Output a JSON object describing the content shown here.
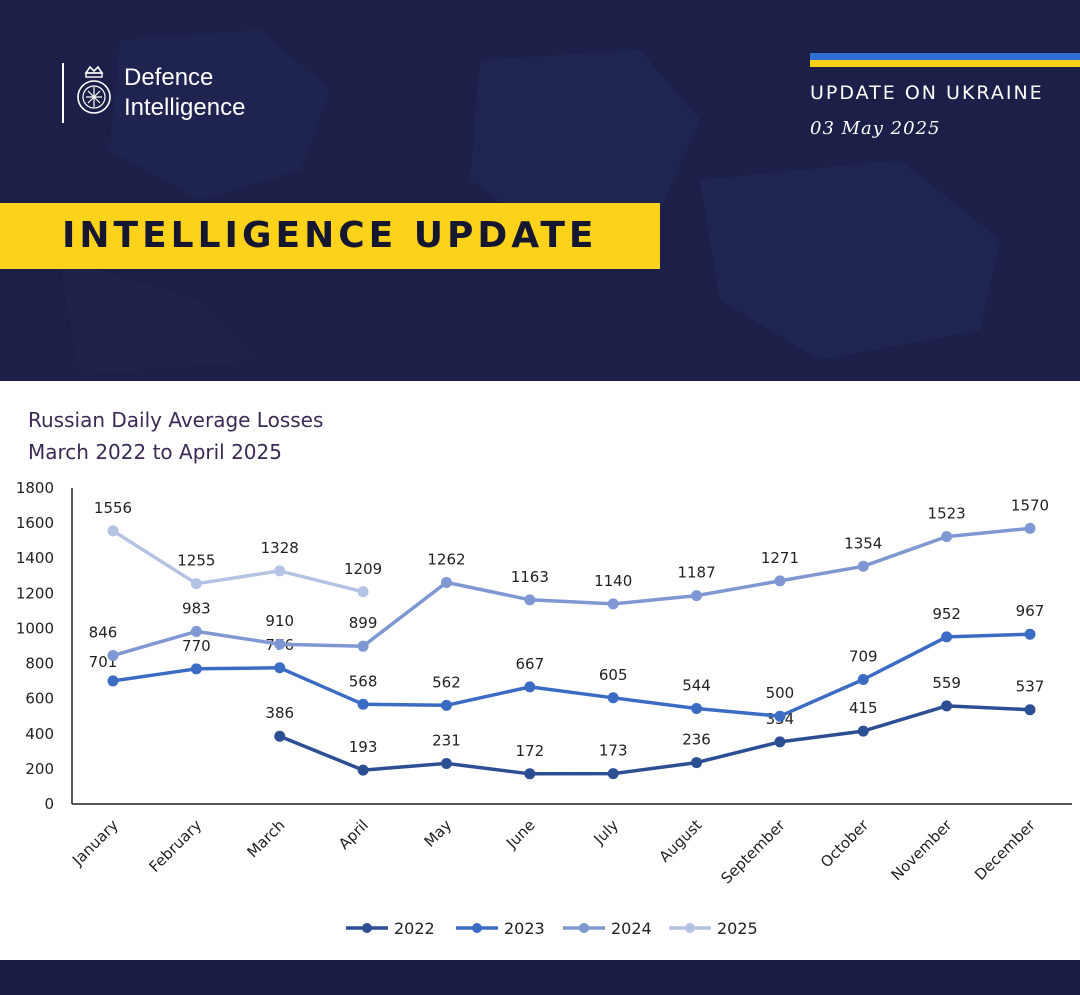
{
  "header": {
    "logo_line1": "Defence",
    "logo_line2": "Intelligence",
    "update_title": "UPDATE ON UKRAINE",
    "update_date": "03 May 2025",
    "banner": "INTELLIGENCE UPDATE"
  },
  "colors": {
    "navy_background": "#1b1f45",
    "banner_yellow": "#fcd21b",
    "flag_blue": "#2f6fd6",
    "flag_yellow": "#f7d117"
  },
  "chart_data": {
    "type": "line",
    "title_line1": "Russian Daily Average Losses",
    "title_line2": "March 2022 to April 2025",
    "xlabel": "",
    "ylabel": "",
    "categories": [
      "January",
      "February",
      "March",
      "April",
      "May",
      "June",
      "July",
      "August",
      "September",
      "October",
      "November",
      "December"
    ],
    "yticks": [
      "0",
      "200",
      "400",
      "600",
      "800",
      "1000",
      "1200",
      "1400",
      "1600",
      "1800"
    ],
    "ylim": [
      0,
      1800
    ],
    "grid": false,
    "legend_position": "bottom",
    "series": [
      {
        "name": "2022",
        "color": "#2c4f93",
        "values": [
          null,
          null,
          386,
          193,
          231,
          172,
          173,
          236,
          354,
          415,
          559,
          537
        ]
      },
      {
        "name": "2023",
        "color": "#3b6cc4",
        "values": [
          701,
          770,
          776,
          568,
          562,
          667,
          605,
          544,
          500,
          709,
          952,
          967
        ]
      },
      {
        "name": "2024",
        "color": "#7f98d4",
        "values": [
          846,
          983,
          910,
          899,
          1262,
          1163,
          1140,
          1187,
          1271,
          1354,
          1523,
          1570
        ]
      },
      {
        "name": "2025",
        "color": "#b4c2e4",
        "values": [
          1556,
          1255,
          1328,
          1209,
          null,
          null,
          null,
          null,
          null,
          null,
          null,
          null
        ]
      }
    ]
  }
}
